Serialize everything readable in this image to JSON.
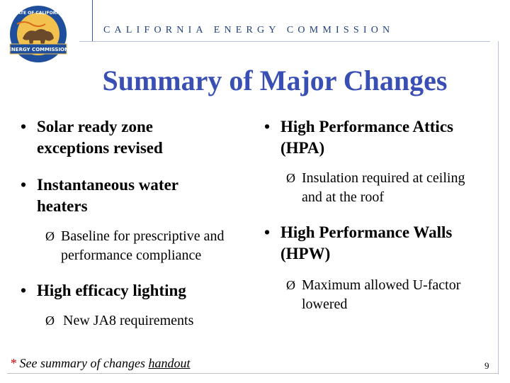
{
  "header": {
    "agency": "CALIFORNIA ENERGY COMMISSION",
    "logo_text_top": "STATE OF CALIFORNIA",
    "logo_text_bottom": "ENERGY COMMISSION"
  },
  "title": "Summary of Major Changes",
  "left_column": [
    {
      "text_lines": [
        "Solar ready zone",
        "exceptions revised"
      ],
      "sub": []
    },
    {
      "text_lines": [
        "Instantaneous water",
        "heaters"
      ],
      "sub": [
        {
          "lines": [
            "Baseline for prescriptive and",
            "performance compliance"
          ]
        }
      ]
    },
    {
      "text_lines": [
        "High efficacy lighting"
      ],
      "sub": [
        {
          "lines": [
            "New JA8 requirements"
          ]
        }
      ]
    }
  ],
  "right_column": [
    {
      "text_lines": [
        "High Performance Attics",
        "(HPA)"
      ],
      "sub": [
        {
          "lines": [
            "Insulation required at ceiling",
            "and at the roof"
          ]
        }
      ]
    },
    {
      "text_lines": [
        "High Performance Walls",
        "(HPW)"
      ],
      "sub": [
        {
          "lines": [
            "Maximum allowed U-factor",
            "lowered"
          ]
        }
      ]
    }
  ],
  "footnote": {
    "star": "*",
    "text": " See summary of changes ",
    "link": "handout"
  },
  "page_number": "9",
  "colors": {
    "title": "#3a4fb4",
    "header": "#1f3f7a",
    "footnote_star": "#c00000"
  },
  "icons": {
    "bullet": "•",
    "arrow": "Ø"
  }
}
